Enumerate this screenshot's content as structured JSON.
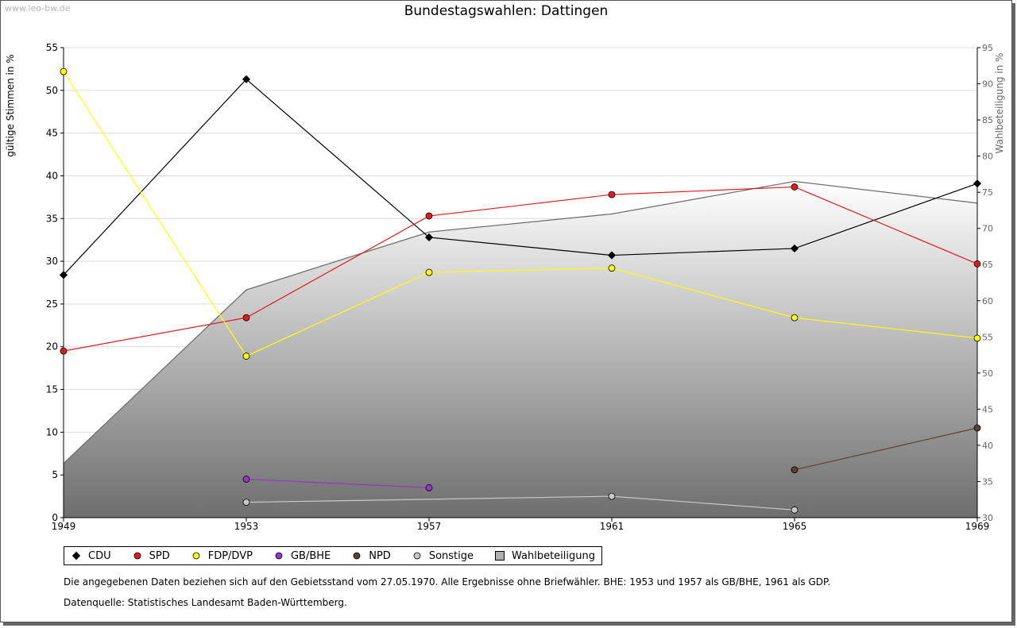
{
  "header": {
    "watermark": "www.leo-bw.de",
    "title": "Bundestagswahlen: Dattingen"
  },
  "chart_data": {
    "type": "line",
    "title": "Bundestagswahlen: Dattingen",
    "x": [
      1949,
      1953,
      1957,
      1961,
      1965,
      1969
    ],
    "xlim": [
      1949,
      1969
    ],
    "ylabel": "gültige Stimmen in %",
    "ylim": [
      0,
      55
    ],
    "yticks": [
      0,
      5,
      10,
      15,
      20,
      25,
      30,
      35,
      40,
      45,
      50,
      55
    ],
    "y2label": "Wahlbeteiligung in %",
    "y2lim": [
      30,
      95
    ],
    "y2ticks": [
      30,
      35,
      40,
      45,
      50,
      55,
      60,
      65,
      70,
      75,
      80,
      85,
      90,
      95
    ],
    "grid": true,
    "legend_position": "bottom",
    "series": [
      {
        "name": "CDU",
        "color": "#000000",
        "values": [
          28.4,
          51.3,
          32.8,
          30.7,
          31.5,
          39.1
        ]
      },
      {
        "name": "SPD",
        "color": "#e41a1c",
        "values": [
          19.5,
          23.4,
          35.3,
          37.8,
          38.7,
          29.7
        ]
      },
      {
        "name": "FDP/DVP",
        "color": "#ffff00",
        "values": [
          52.2,
          18.9,
          28.7,
          29.2,
          23.4,
          21.0
        ]
      },
      {
        "name": "GB/BHE",
        "color": "#9933cc",
        "values": [
          null,
          4.5,
          3.5,
          null,
          null,
          null
        ]
      },
      {
        "name": "NPD",
        "color": "#5c4033",
        "values": [
          null,
          null,
          null,
          null,
          5.6,
          10.5
        ]
      },
      {
        "name": "Sonstige",
        "color": "#c8c8c8",
        "values": [
          null,
          1.8,
          null,
          2.5,
          0.9,
          null
        ]
      },
      {
        "name": "Wahlbeteiligung",
        "color": "#888888",
        "type": "area",
        "axis": "right",
        "values": [
          37.5,
          61.5,
          69.5,
          72.0,
          76.5,
          73.5
        ]
      }
    ]
  },
  "notes": {
    "line1": "Die angegebenen Daten beziehen sich auf den Gebietsstand vom 27.05.1970. Alle Ergebnisse ohne Briefwähler. BHE: 1953 und 1957 als GB/BHE, 1961 als GDP.",
    "line2": "Datenquelle: Statistisches Landesamt Baden-Württemberg."
  }
}
